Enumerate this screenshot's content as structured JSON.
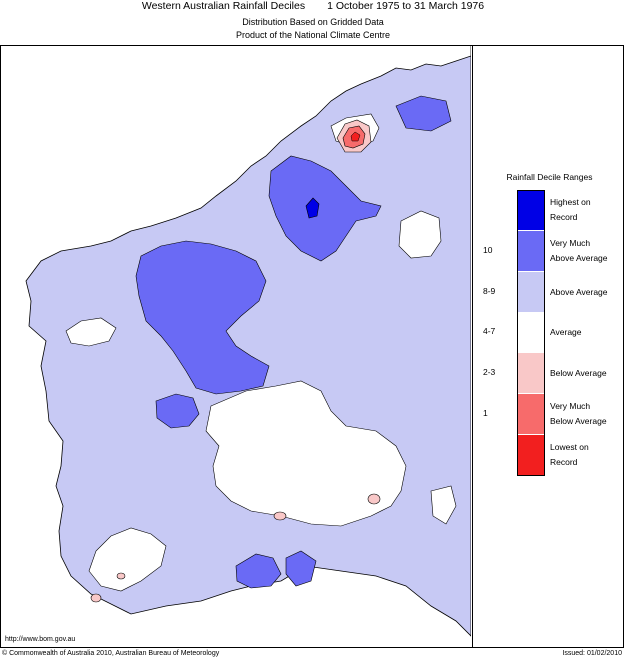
{
  "header": {
    "title": "Western Australian Rainfall Deciles",
    "period": "1 October 1975 to 31 March 1976",
    "subtitle1": "Distribution Based on Gridded Data",
    "subtitle2": "Product of the National Climate Centre"
  },
  "legend": {
    "title": "Rainfall Decile Ranges",
    "items": [
      {
        "code": "",
        "line1": "Highest on",
        "line2": "Record",
        "color": "#0000e6"
      },
      {
        "code": "10",
        "line1": "Very Much",
        "line2": "Above Average",
        "color": "#6a6af5"
      },
      {
        "code": "8-9",
        "line1": "Above Average",
        "line2": "",
        "color": "#c7c9f4"
      },
      {
        "code": "4-7",
        "line1": "Average",
        "line2": "",
        "color": "#ffffff"
      },
      {
        "code": "2-3",
        "line1": "Below Average",
        "line2": "",
        "color": "#f9c8c8"
      },
      {
        "code": "1",
        "line1": "Very Much",
        "line2": "Below Average",
        "color": "#f76b6b"
      },
      {
        "code": "",
        "line1": "Lowest on",
        "line2": "Record",
        "color": "#f21f1f"
      }
    ]
  },
  "footer": {
    "website": "http://www.bom.gov.au",
    "copyright": "© Commonwealth of Australia 2010, Australian Bureau of Meteorology",
    "issued": "Issued: 01/02/2010"
  },
  "map": {
    "state": "Western Australia",
    "colors": {
      "highest": "#0000e6",
      "very_much_above": "#6a6af5",
      "above": "#c7c9f4",
      "average": "#ffffff",
      "below": "#f9c8c8",
      "very_much_below": "#f76b6b",
      "lowest": "#f21f1f"
    }
  }
}
